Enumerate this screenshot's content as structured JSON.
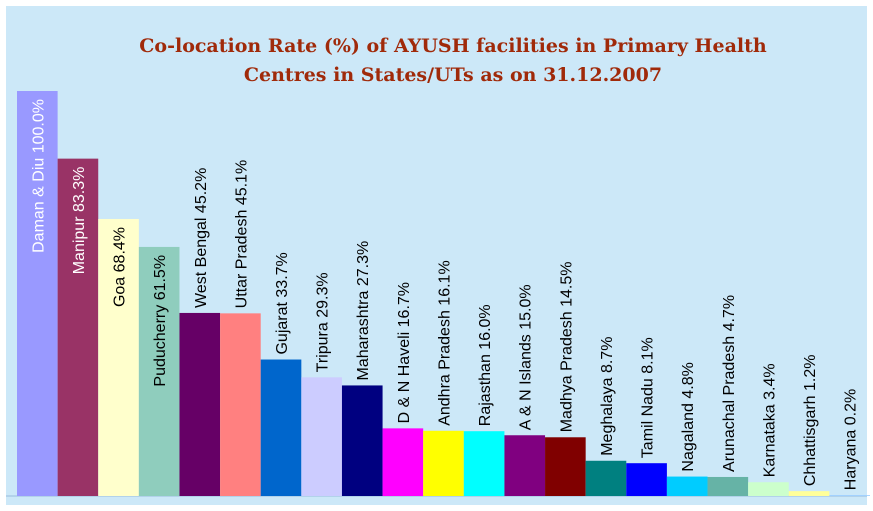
{
  "chart_data": {
    "type": "bar",
    "title": [
      "Co-location Rate (%) of AYUSH facilities in Primary Health",
      "Centres in States/UTs as on 31.12.2007"
    ],
    "categories": [
      "Daman & Diu",
      "Manipur",
      "Goa",
      "Puducherry",
      "West Bengal",
      "Uttar Pradesh",
      "Gujarat",
      "Tripura",
      "Maharashtra",
      "D & N Haveli",
      "Andhra Pradesh",
      "Rajasthan",
      "A & N Islands",
      "Madhya Pradesh",
      "Meghalaya",
      "Tamil Nadu",
      "Nagaland",
      "Arunachal Pradesh",
      "Karnataka",
      "Chhattisgarh",
      "Haryana"
    ],
    "values": [
      100.0,
      83.3,
      68.4,
      61.5,
      45.2,
      45.1,
      33.7,
      29.3,
      27.3,
      16.7,
      16.1,
      16.0,
      15.0,
      14.5,
      8.7,
      8.1,
      4.8,
      4.7,
      3.4,
      1.2,
      0.2
    ],
    "value_labels": [
      "100.0%",
      "83.3%",
      "68.4%",
      "61.5%",
      "45.2%",
      "45.1%",
      "33.7%",
      "29.3%",
      "27.3%",
      "16.7%",
      "16.1%",
      "16.0%",
      "15.0%",
      "14.5%",
      "8.7%",
      "8.1%",
      "4.8%",
      "4.7%",
      "3.4%",
      "1.2%",
      "0.2%"
    ],
    "colors": [
      "#9999ff",
      "#993366",
      "#ffffcc",
      "#8fcdbd",
      "#660066",
      "#ff8080",
      "#0066cc",
      "#ccccff",
      "#000080",
      "#ff00ff",
      "#ffff00",
      "#00ffff",
      "#800080",
      "#800000",
      "#008080",
      "#0000ff",
      "#00ccff",
      "#66b3a6",
      "#ccffcc",
      "#ffff99",
      "#99ccff"
    ]
  }
}
